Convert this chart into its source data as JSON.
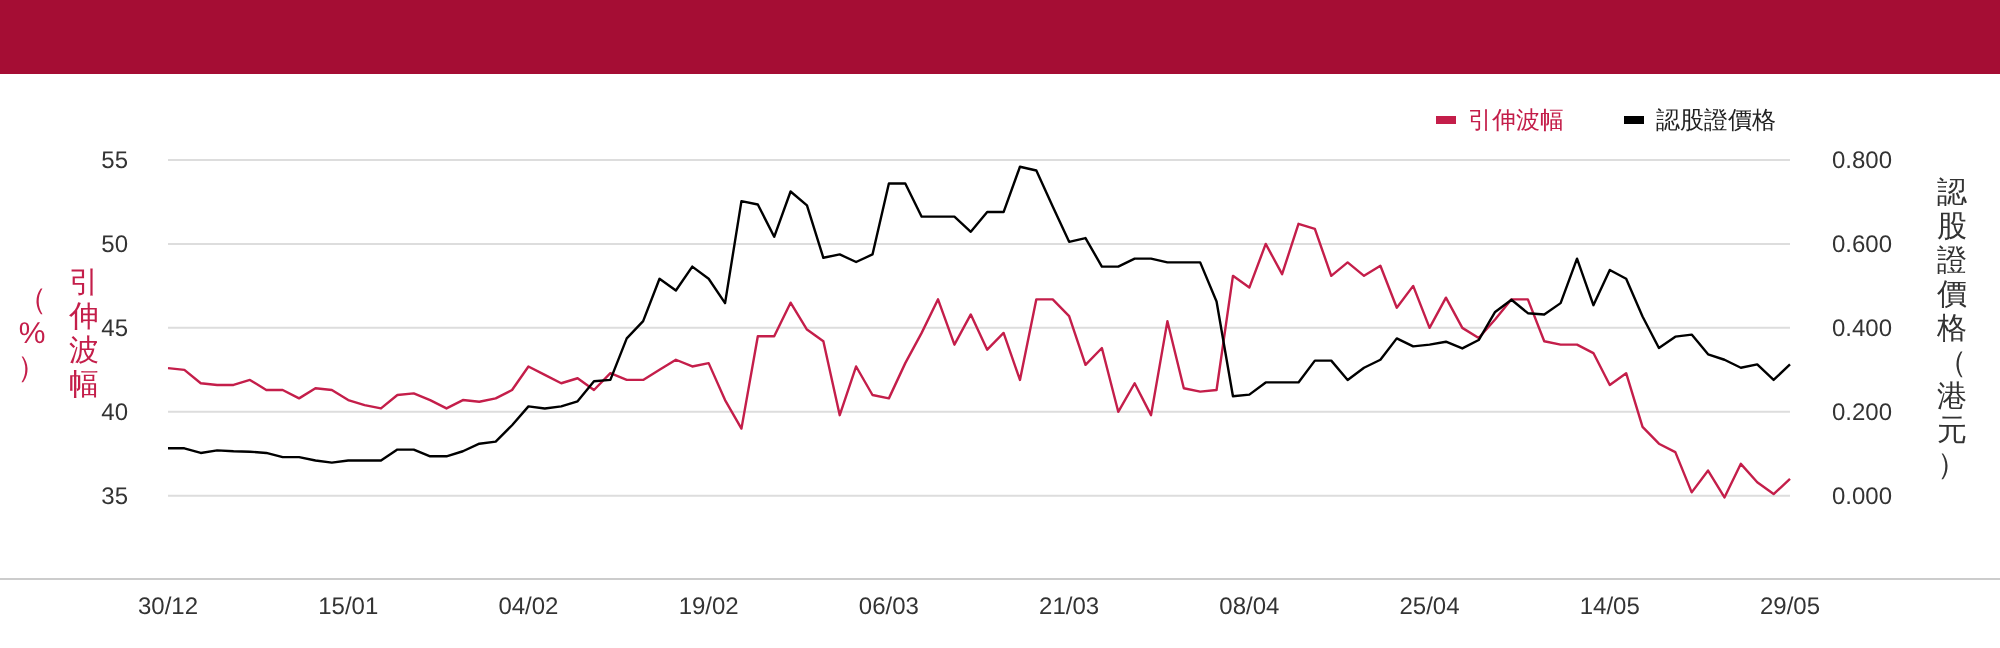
{
  "chart_data": {
    "type": "line",
    "categories": [
      "30/12",
      null,
      null,
      null,
      null,
      null,
      null,
      null,
      null,
      null,
      null,
      "15/01",
      null,
      null,
      null,
      null,
      null,
      null,
      null,
      null,
      null,
      null,
      "04/02",
      null,
      null,
      null,
      null,
      null,
      null,
      null,
      null,
      null,
      null,
      "19/02",
      null,
      null,
      null,
      null,
      null,
      null,
      null,
      null,
      null,
      null,
      "06/03",
      null,
      null,
      null,
      null,
      null,
      null,
      null,
      null,
      null,
      null,
      "21/03",
      null,
      null,
      null,
      null,
      null,
      null,
      null,
      null,
      null,
      null,
      "08/04",
      null,
      null,
      null,
      null,
      null,
      null,
      null,
      null,
      null,
      null,
      "25/04",
      null,
      null,
      null,
      null,
      null,
      null,
      null,
      null,
      null,
      null,
      "14/05",
      null,
      null,
      null,
      null,
      null,
      null,
      null,
      null,
      null,
      null,
      "29/05"
    ],
    "series": [
      {
        "name": "引伸波幅",
        "color": "#c41e4a",
        "values": [
          42.6,
          42.5,
          41.7,
          41.6,
          41.6,
          41.9,
          41.3,
          41.3,
          40.8,
          41.4,
          41.3,
          40.7,
          40.4,
          40.2,
          41.0,
          41.1,
          40.7,
          40.2,
          40.7,
          40.6,
          40.8,
          41.3,
          42.7,
          42.2,
          41.7,
          42.0,
          41.3,
          42.3,
          41.9,
          41.9,
          42.5,
          43.1,
          42.7,
          42.9,
          40.7,
          39.0,
          44.5,
          44.5,
          46.5,
          44.9,
          44.2,
          39.8,
          42.7,
          41.0,
          40.8,
          42.9,
          44.7,
          46.7,
          44.0,
          45.8,
          43.7,
          44.7,
          41.9,
          46.7,
          46.7,
          45.7,
          42.8,
          43.8,
          40.0,
          41.7,
          39.8,
          45.4,
          41.4,
          41.2,
          41.3,
          48.1,
          47.4,
          50.0,
          48.2,
          51.2,
          50.9,
          48.1,
          48.9,
          48.1,
          48.7,
          46.2,
          47.5,
          45.0,
          46.8,
          45.0,
          44.4,
          45.5,
          46.7,
          46.7,
          44.2,
          44.0,
          44.0,
          43.5,
          41.6,
          42.3,
          39.1,
          38.1,
          37.6,
          35.2,
          36.5,
          34.9,
          36.9,
          35.8,
          35.1,
          36.0
        ]
      },
      {
        "name": "認股證價格",
        "color": "#000000",
        "axis": "y2",
        "values": [
          0.113,
          0.113,
          0.102,
          0.108,
          0.106,
          0.105,
          0.102,
          0.092,
          0.092,
          0.084,
          0.079,
          0.084,
          0.084,
          0.084,
          0.11,
          0.11,
          0.094,
          0.094,
          0.106,
          0.124,
          0.129,
          0.168,
          0.213,
          0.208,
          0.213,
          0.225,
          0.273,
          0.276,
          0.375,
          0.416,
          0.517,
          0.489,
          0.546,
          0.517,
          0.459,
          0.702,
          0.694,
          0.617,
          0.725,
          0.692,
          0.567,
          0.575,
          0.557,
          0.575,
          0.744,
          0.744,
          0.665,
          0.665,
          0.665,
          0.629,
          0.676,
          0.676,
          0.784,
          0.775,
          0.689,
          0.605,
          0.614,
          0.546,
          0.546,
          0.565,
          0.565,
          0.556,
          0.556,
          0.556,
          0.463,
          0.237,
          0.241,
          0.27,
          0.27,
          0.27,
          0.322,
          0.322,
          0.276,
          0.305,
          0.324,
          0.375,
          0.356,
          0.36,
          0.367,
          0.351,
          0.371,
          0.438,
          0.467,
          0.435,
          0.432,
          0.459,
          0.565,
          0.454,
          0.538,
          0.517,
          0.427,
          0.352,
          0.379,
          0.384,
          0.337,
          0.324,
          0.305,
          0.313,
          0.276,
          0.313
        ]
      }
    ],
    "ylabel": "引伸波幅（%）",
    "y2label": "認股證價格（港元）",
    "ylim": [
      30.1,
      55
    ],
    "yticks": [
      35,
      40,
      45,
      50,
      55
    ],
    "y2lim": [
      -0.196,
      0.8
    ],
    "y2ticks": [
      {
        "value": 0,
        "label": "0.000"
      },
      {
        "value": 0.2,
        "label": "0.200"
      },
      {
        "value": 0.4,
        "label": "0.400"
      },
      {
        "value": 0.6,
        "label": "0.600"
      },
      {
        "value": 0.8,
        "label": "0.800"
      }
    ],
    "grid": "y",
    "legend": "top right"
  }
}
